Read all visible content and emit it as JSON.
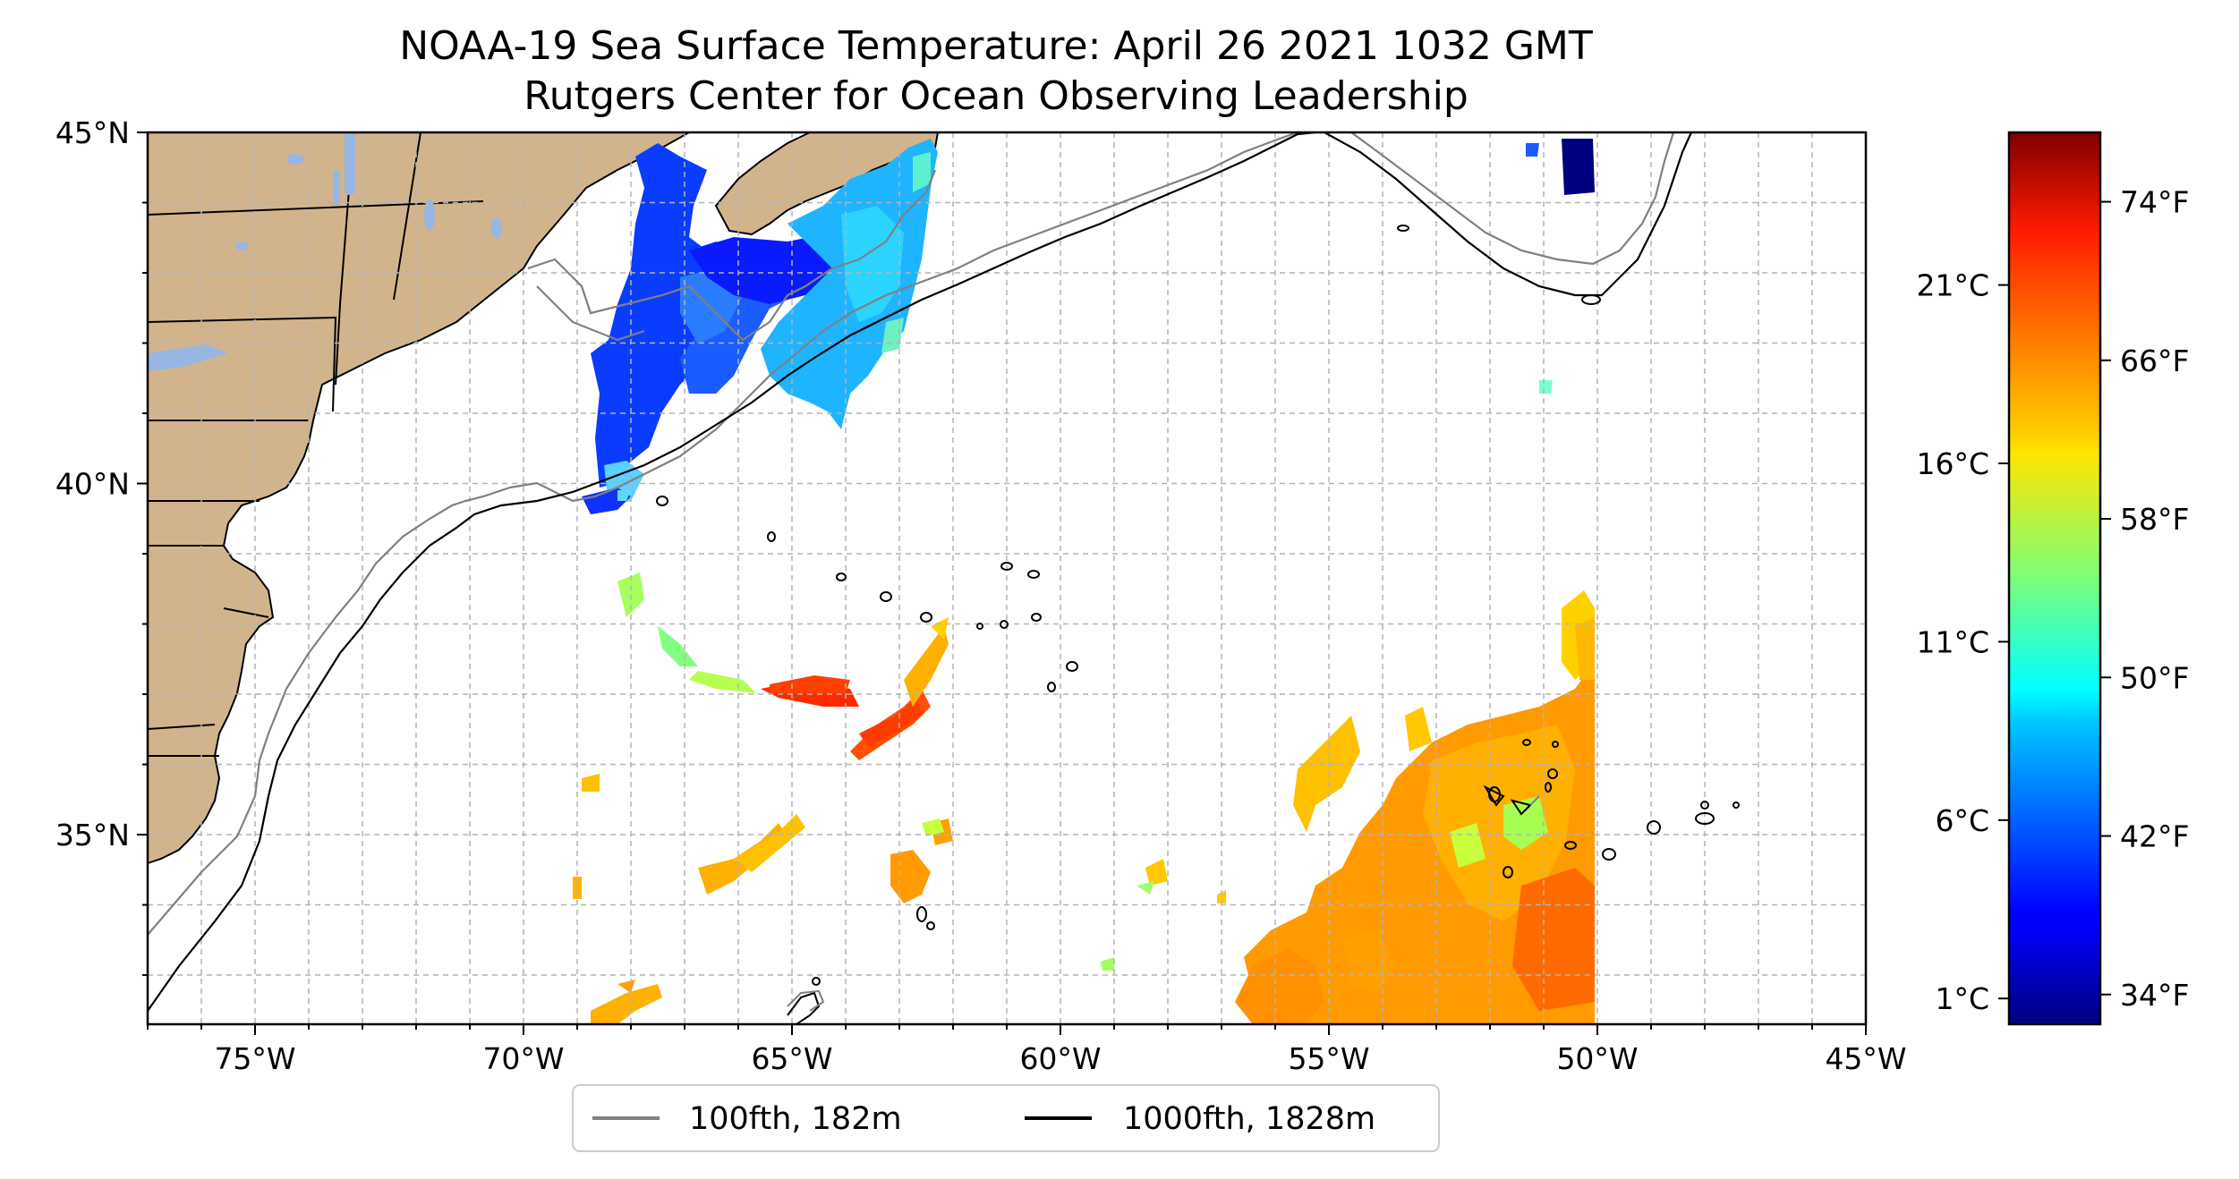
{
  "title_line1": "NOAA-19 Sea Surface Temperature: April 26 2021 1032 GMT",
  "title_line2": "Rutgers Center for Ocean Observing Leadership",
  "map": {
    "lon_range": [
      -77,
      -45
    ],
    "lat_range": [
      32.3,
      45
    ],
    "x_ticks": [
      {
        "lon": -75,
        "label": "75°W"
      },
      {
        "lon": -70,
        "label": "70°W"
      },
      {
        "lon": -65,
        "label": "65°W"
      },
      {
        "lon": -60,
        "label": "60°W"
      },
      {
        "lon": -55,
        "label": "55°W"
      },
      {
        "lon": -50,
        "label": "50°W"
      },
      {
        "lon": -45,
        "label": "45°W"
      }
    ],
    "y_ticks": [
      {
        "lat": 45,
        "label": "45°N"
      },
      {
        "lat": 40,
        "label": "40°N"
      },
      {
        "lat": 35,
        "label": "35°N"
      }
    ],
    "grid_step_deg": 1,
    "grid": true
  },
  "legend": {
    "placement": "bottom-center",
    "items": [
      {
        "label": "100fth, 182m",
        "color": "#808080"
      },
      {
        "label": "1000fth, 1828m",
        "color": "#000000"
      }
    ]
  },
  "colorbar": {
    "colormap": "jet",
    "range_f": [
      32.5,
      77.5
    ],
    "celsius_ticks": [
      {
        "value_c": 21,
        "label": "21°C"
      },
      {
        "value_c": 16,
        "label": "16°C"
      },
      {
        "value_c": 11,
        "label": "11°C"
      },
      {
        "value_c": 6,
        "label": "6°C"
      },
      {
        "value_c": 1,
        "label": "1°C"
      }
    ],
    "fahrenheit_ticks": [
      {
        "value_f": 74,
        "label": "74°F"
      },
      {
        "value_f": 66,
        "label": "66°F"
      },
      {
        "value_f": 58,
        "label": "58°F"
      },
      {
        "value_f": 50,
        "label": "50°F"
      },
      {
        "value_f": 42,
        "label": "42°F"
      },
      {
        "value_f": 34,
        "label": "34°F"
      }
    ]
  },
  "colors": {
    "land": "#D2B48C",
    "lakes": "#97B6E1",
    "grid": "#b4b4b4",
    "contour_100fth": "#808080",
    "contour_1000fth": "#000000"
  }
}
